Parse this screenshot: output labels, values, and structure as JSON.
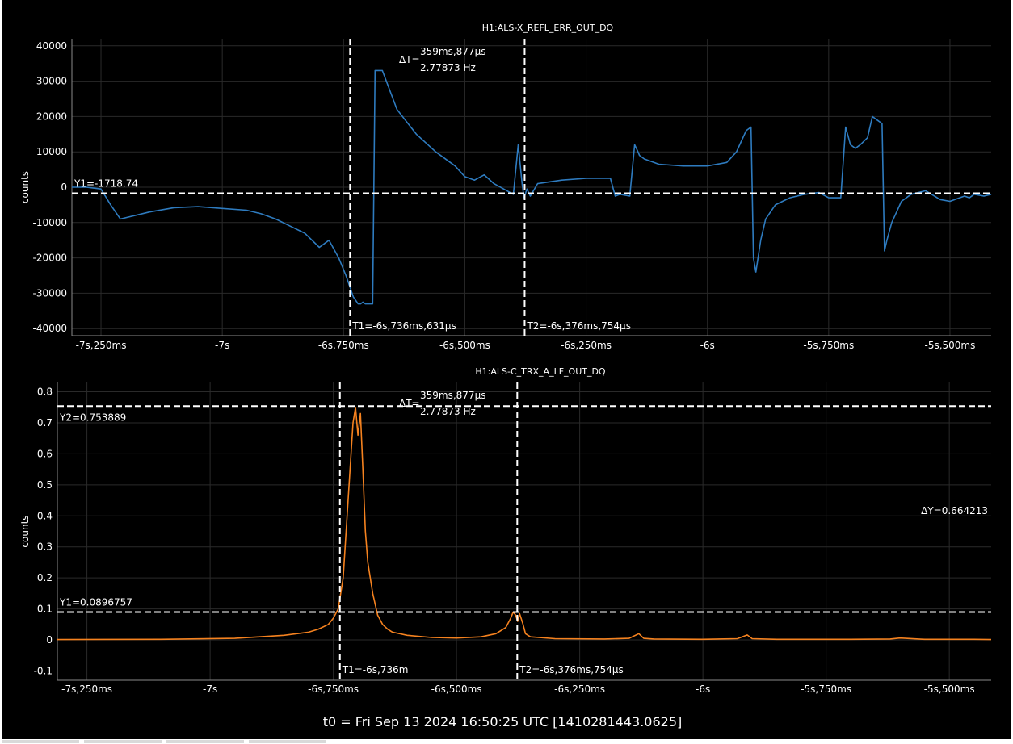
{
  "footer": "t0 = Fri Sep 13 2024 16:50:25 UTC [1410281443.0625]",
  "chart_data": [
    {
      "type": "line",
      "title": "H1:ALS-X_REFL_ERR_OUT_DQ",
      "ylabel": "counts",
      "xlabel": "",
      "xlim": [
        -7.31,
        -5.415
      ],
      "ylim": [
        -42000,
        42000
      ],
      "x_ticks": [
        -7.25,
        -7.0,
        -6.75,
        -6.5,
        -6.25,
        -6.0,
        -5.75,
        -5.5
      ],
      "x_tick_labels": [
        "-7s,250ms",
        "-7s",
        "-6s,750ms",
        "-6s,500ms",
        "-6s,250ms",
        "-6s",
        "-5s,750ms",
        "-5s,500ms"
      ],
      "y_ticks": [
        40000,
        30000,
        20000,
        10000,
        0,
        -10000,
        -20000,
        -30000,
        -40000
      ],
      "y_tick_labels": [
        "40000",
        "30000",
        "20000",
        "10000",
        "0",
        "-10000",
        "-20000",
        "-30000",
        "-40000"
      ],
      "grid": true,
      "series": [
        {
          "color": "#2e7bbf",
          "x": [
            -7.31,
            -7.28,
            -7.25,
            -7.23,
            -7.21,
            -7.15,
            -7.1,
            -7.05,
            -7.0,
            -6.95,
            -6.92,
            -6.89,
            -6.86,
            -6.83,
            -6.8,
            -6.78,
            -6.76,
            -6.745,
            -6.73,
            -6.72,
            -6.715,
            -6.71,
            -6.705,
            -6.69,
            -6.685,
            -6.67,
            -6.64,
            -6.6,
            -6.56,
            -6.52,
            -6.5,
            -6.48,
            -6.46,
            -6.44,
            -6.42,
            -6.4,
            -6.39,
            -6.382,
            -6.378,
            -6.372,
            -6.365,
            -6.35,
            -6.3,
            -6.25,
            -6.2,
            -6.19,
            -6.18,
            -6.16,
            -6.15,
            -6.143,
            -6.14,
            -6.13,
            -6.1,
            -6.05,
            -6.0,
            -5.96,
            -5.94,
            -5.93,
            -5.92,
            -5.91,
            -5.905,
            -5.9,
            -5.89,
            -5.88,
            -5.86,
            -5.83,
            -5.8,
            -5.77,
            -5.75,
            -5.725,
            -5.715,
            -5.705,
            -5.695,
            -5.685,
            -5.67,
            -5.66,
            -5.65,
            -5.64,
            -5.635,
            -5.63,
            -5.62,
            -5.61,
            -5.6,
            -5.58,
            -5.55,
            -5.52,
            -5.5,
            -5.48,
            -5.47,
            -5.46,
            -5.45,
            -5.43,
            -5.415
          ],
          "y": [
            0,
            0,
            -500,
            -5000,
            -9000,
            -7000,
            -5800,
            -5500,
            -6000,
            -6500,
            -7500,
            -9000,
            -11000,
            -13000,
            -17000,
            -15000,
            -20000,
            -25000,
            -31000,
            -33000,
            -33000,
            -32500,
            -33000,
            -33000,
            33000,
            33000,
            22000,
            15000,
            10000,
            6000,
            3000,
            2000,
            3500,
            1000,
            -500,
            -2000,
            12000,
            1000,
            -3000,
            -500,
            -2500,
            1000,
            2000,
            2500,
            2500,
            -2500,
            -2000,
            -2500,
            12000,
            10000,
            9000,
            8000,
            6500,
            6000,
            6000,
            7000,
            10000,
            13000,
            16000,
            17000,
            -20000,
            -24000,
            -15000,
            -9000,
            -5000,
            -3000,
            -2000,
            -1500,
            -3000,
            -3000,
            17000,
            12000,
            11000,
            12000,
            14000,
            20000,
            19000,
            18000,
            -18000,
            -15000,
            -10000,
            -7000,
            -4000,
            -2000,
            -1000,
            -3500,
            -4000,
            -3000,
            -2500,
            -3000,
            -2000,
            -2500,
            -2000
          ]
        }
      ],
      "cursors": {
        "T1": "T1=-6s,736ms,631µs",
        "T2": "T2=-6s,376ms,754µs",
        "T1_value": -6.736631,
        "T2_value": -6.376754,
        "dT_label": "ΔT=",
        "dT": "359ms,877µs",
        "freq": "2.77873 Hz",
        "Y1": "Y1=-1718.74",
        "Y1_value": -1718.74
      }
    },
    {
      "type": "line",
      "title": "H1:ALS-C_TRX_A_LF_OUT_DQ",
      "ylabel": "counts",
      "xlabel": "",
      "xlim": [
        -7.31,
        -5.415
      ],
      "ylim": [
        -0.13,
        0.83
      ],
      "x_ticks": [
        -7.25,
        -7.0,
        -6.75,
        -6.5,
        -6.25,
        -6.0,
        -5.75,
        -5.5
      ],
      "x_tick_labels": [
        "-7s,250ms",
        "-7s",
        "-6s,750ms",
        "-6s,500ms",
        "-6s,250ms",
        "-6s",
        "-5s,750ms",
        "-5s,500ms"
      ],
      "y_ticks": [
        0.8,
        0.7,
        0.6,
        0.5,
        0.4,
        0.3,
        0.2,
        0.1,
        0,
        -0.1
      ],
      "y_tick_labels": [
        "0.8",
        "0.7",
        "0.6",
        "0.5",
        "0.4",
        "0.3",
        "0.2",
        "0.1",
        "0",
        "-0.1"
      ],
      "grid": true,
      "series": [
        {
          "color": "#f5821f",
          "x": [
            -7.31,
            -7.1,
            -6.95,
            -6.85,
            -6.8,
            -6.78,
            -6.76,
            -6.75,
            -6.74,
            -6.73,
            -6.72,
            -6.71,
            -6.705,
            -6.7,
            -6.695,
            -6.69,
            -6.685,
            -6.68,
            -6.67,
            -6.66,
            -6.65,
            -6.64,
            -6.63,
            -6.6,
            -6.55,
            -6.5,
            -6.45,
            -6.42,
            -6.4,
            -6.39,
            -6.385,
            -6.38,
            -6.376,
            -6.372,
            -6.365,
            -6.36,
            -6.35,
            -6.3,
            -6.2,
            -6.15,
            -6.13,
            -6.12,
            -6.1,
            -6.0,
            -5.93,
            -5.91,
            -5.9,
            -5.85,
            -5.8,
            -5.7,
            -5.62,
            -5.6,
            -5.55,
            -5.5,
            -5.45,
            -5.415
          ],
          "y": [
            0.001,
            0.002,
            0.005,
            0.015,
            0.025,
            0.035,
            0.05,
            0.07,
            0.1,
            0.2,
            0.45,
            0.7,
            0.75,
            0.66,
            0.73,
            0.55,
            0.35,
            0.25,
            0.15,
            0.08,
            0.05,
            0.035,
            0.025,
            0.015,
            0.008,
            0.006,
            0.01,
            0.02,
            0.04,
            0.07,
            0.09,
            0.08,
            0.06,
            0.085,
            0.05,
            0.02,
            0.01,
            0.004,
            0.003,
            0.005,
            0.02,
            0.005,
            0.003,
            0.002,
            0.004,
            0.016,
            0.004,
            0.002,
            0.002,
            0.002,
            0.003,
            0.006,
            0.002,
            0.002,
            0.002,
            0.001
          ]
        }
      ],
      "cursors": {
        "T1": "T1=-6s,736m",
        "T2": "T2=-6s,376ms,754µs",
        "T1_value": -6.736631,
        "T2_value": -6.376754,
        "dT_label": "ΔT=",
        "dT": "359ms,877µs",
        "freq": "2.77873 Hz",
        "Y1": "Y1=0.0896757",
        "Y1_value": 0.0896757,
        "Y2": "Y2=0.753889",
        "Y2_value": 0.753889,
        "dY": "ΔY=0.664213"
      }
    }
  ]
}
